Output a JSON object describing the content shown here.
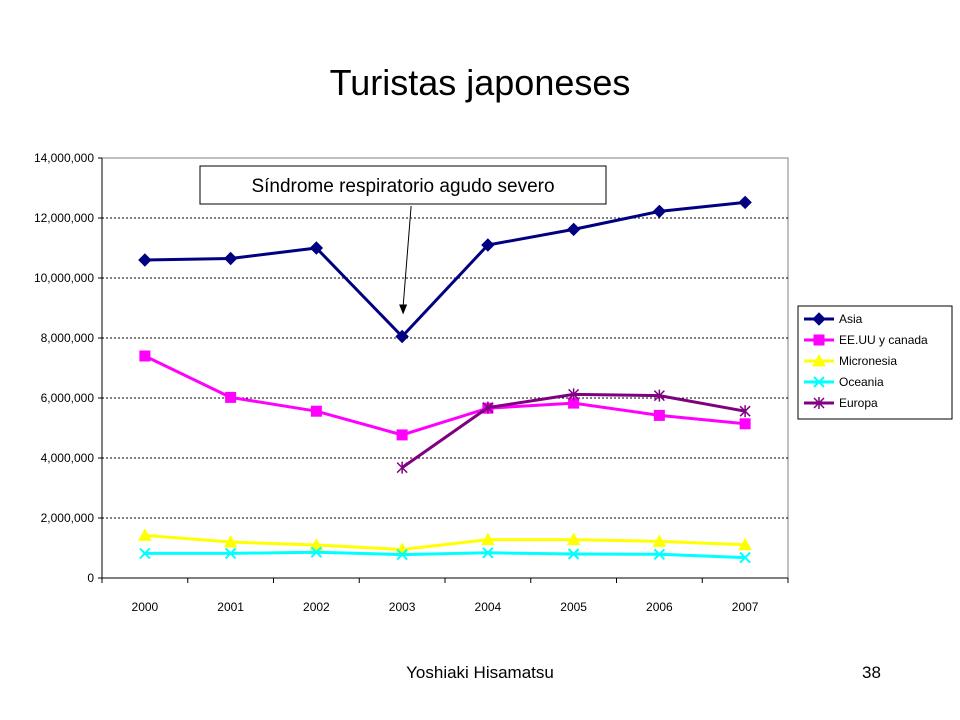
{
  "chart_data": {
    "type": "line",
    "title": "Turistas japoneses",
    "categories": [
      "2000",
      "2001",
      "2002",
      "2003",
      "2004",
      "2005",
      "2006",
      "2007"
    ],
    "ylim": [
      0,
      14000000
    ],
    "yticks": [
      "0",
      "2,000,000",
      "4,000,000",
      "6,000,000",
      "8,000,000",
      "10,000,000",
      "12,000,000",
      "14,000,000"
    ],
    "grid": true,
    "legend_position": "right",
    "annotation": {
      "text": "Síndrome respiratorio agudo severo",
      "target_category": "2003"
    },
    "series": [
      {
        "name": "Asia",
        "color": "#000080",
        "marker": "diamond",
        "width": 3,
        "values": [
          10600000,
          10650000,
          11000000,
          8050000,
          11100000,
          11620000,
          12220000,
          12520000
        ]
      },
      {
        "name": "EE.UU y canada",
        "color": "#FF00FF",
        "marker": "square",
        "width": 3,
        "values": [
          7400000,
          6020000,
          5560000,
          4770000,
          5660000,
          5830000,
          5420000,
          5140000
        ]
      },
      {
        "name": "Micronesia",
        "color": "#FFFF00",
        "marker": "triangle",
        "width": 3,
        "values": [
          1420000,
          1200000,
          1100000,
          950000,
          1280000,
          1280000,
          1220000,
          1110000
        ]
      },
      {
        "name": "Oceania",
        "color": "#00FFFF",
        "marker": "x",
        "width": 3,
        "values": [
          820000,
          820000,
          860000,
          780000,
          840000,
          800000,
          790000,
          680000
        ]
      },
      {
        "name": "Europa",
        "color": "#800080",
        "marker": "star",
        "width": 3,
        "values": [
          null,
          null,
          null,
          3680000,
          5680000,
          6120000,
          6080000,
          5560000
        ]
      }
    ]
  },
  "footer": {
    "author": "Yoshiaki Hisamatsu",
    "page": "38"
  }
}
